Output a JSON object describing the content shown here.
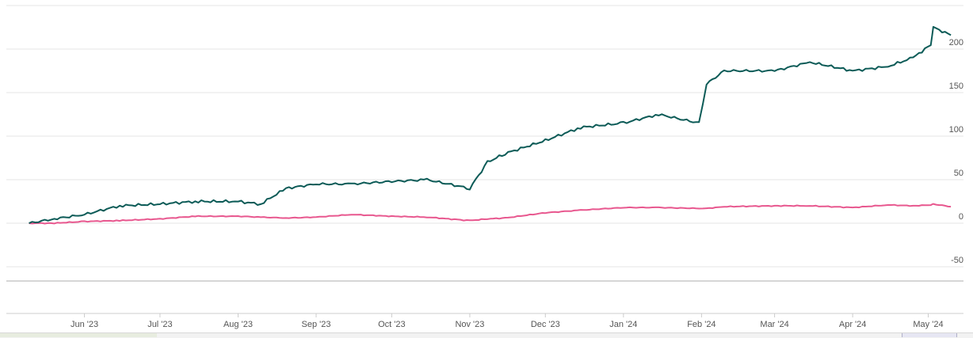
{
  "chart_data": {
    "type": "line",
    "title": "",
    "xlabel": "",
    "ylabel": "",
    "x_tick_labels": [
      "Jun '23",
      "Jul '23",
      "Aug '23",
      "Sep '23",
      "Oct '23",
      "Nov '23",
      "Dec '23",
      "Jan '24",
      "Feb '24",
      "Mar '24",
      "Apr '24",
      "May '24"
    ],
    "y_ticks": [
      200,
      150,
      100,
      50,
      0,
      -50
    ],
    "ylim": [
      -70,
      250
    ],
    "grid": true,
    "legend": "none",
    "x": [
      "2023-05-10",
      "2023-05-20",
      "2023-06-01",
      "2023-06-15",
      "2023-07-01",
      "2023-07-15",
      "2023-08-01",
      "2023-08-10",
      "2023-08-20",
      "2023-09-01",
      "2023-09-15",
      "2023-10-01",
      "2023-10-15",
      "2023-11-01",
      "2023-11-08",
      "2023-11-15",
      "2023-12-01",
      "2023-12-15",
      "2024-01-01",
      "2024-01-15",
      "2024-01-31",
      "2024-02-03",
      "2024-02-10",
      "2024-03-01",
      "2024-03-15",
      "2024-04-01",
      "2024-04-15",
      "2024-04-25",
      "2024-05-02",
      "2024-05-03",
      "2024-05-10"
    ],
    "series": [
      {
        "color": "#0c5b57",
        "values": [
          0,
          5,
          10,
          20,
          22,
          25,
          25,
          22,
          40,
          45,
          45,
          48,
          50,
          40,
          70,
          80,
          95,
          110,
          115,
          125,
          115,
          160,
          175,
          175,
          185,
          175,
          180,
          190,
          205,
          225,
          216
        ]
      },
      {
        "color": "#e8588f",
        "values": [
          0,
          0,
          2,
          3,
          5,
          8,
          8,
          7,
          6,
          7,
          10,
          8,
          7,
          3,
          5,
          6,
          12,
          15,
          18,
          18,
          17,
          17,
          19,
          20,
          20,
          18,
          21,
          20,
          21,
          22,
          19
        ]
      }
    ]
  }
}
